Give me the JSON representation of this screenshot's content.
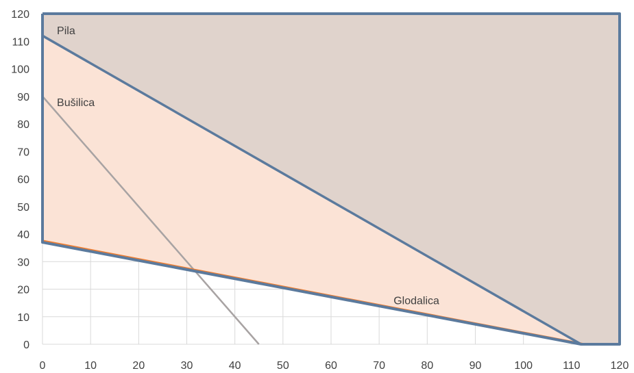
{
  "chart_data": {
    "type": "line",
    "title": "",
    "xlabel": "",
    "ylabel": "",
    "xlim": [
      0,
      120
    ],
    "ylim": [
      0,
      120
    ],
    "x_ticks": [
      "0",
      "10",
      "20",
      "30",
      "40",
      "50",
      "60",
      "70",
      "80",
      "90",
      "100",
      "110",
      "120"
    ],
    "y_ticks": [
      "0",
      "10",
      "20",
      "30",
      "40",
      "50",
      "60",
      "70",
      "80",
      "90",
      "100",
      "110",
      "120"
    ],
    "grid": true,
    "legend": "none",
    "colors": {
      "pila": "#5b7a9d",
      "busilica": "#a8a3a3",
      "glodalica": "#ed7d31",
      "infeasible_fill": "#e0d3cc",
      "feasible_fill": "#fbe3d6",
      "grid": "#d9d9d9"
    },
    "lines": [
      {
        "name": "Pila",
        "points": [
          [
            0,
            112
          ],
          [
            112,
            0
          ]
        ]
      },
      {
        "name": "Bušilica",
        "points": [
          [
            0,
            90
          ],
          [
            45,
            0
          ]
        ]
      },
      {
        "name": "Glodalica",
        "points": [
          [
            0,
            37.5
          ],
          [
            112.5,
            0
          ]
        ]
      }
    ],
    "regions": [
      {
        "role": "above-pila",
        "points": [
          [
            0,
            120
          ],
          [
            120,
            120
          ],
          [
            120,
            0
          ],
          [
            112,
            0
          ],
          [
            0,
            112
          ]
        ]
      },
      {
        "role": "between-pila-glodalica",
        "points": [
          [
            0,
            112
          ],
          [
            112,
            0
          ],
          [
            0,
            37
          ]
        ]
      }
    ],
    "boundary": [
      [
        0,
        120
      ],
      [
        120,
        120
      ],
      [
        120,
        0
      ],
      [
        112,
        0
      ],
      [
        0,
        37
      ],
      [
        0,
        120
      ]
    ]
  }
}
